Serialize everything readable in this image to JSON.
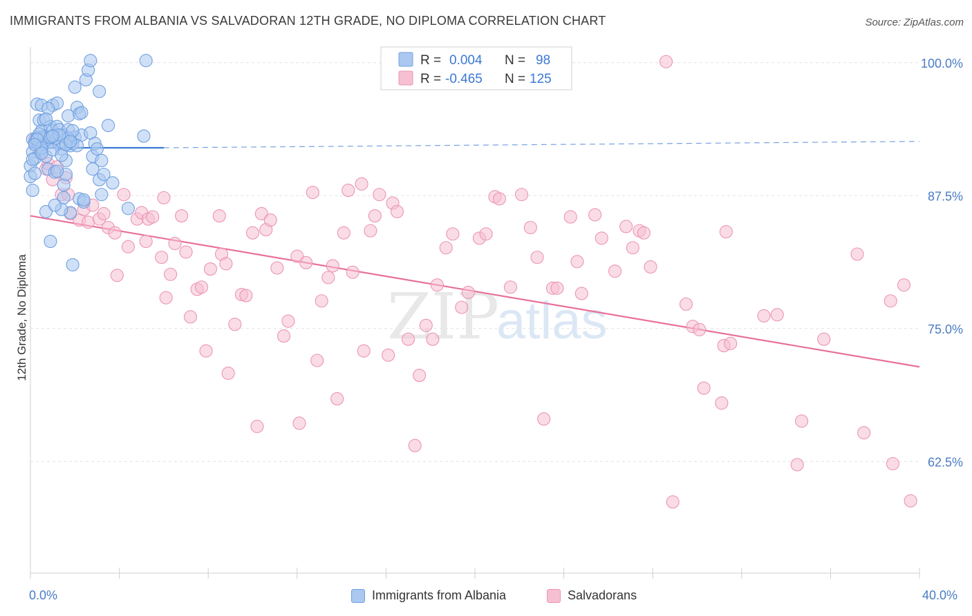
{
  "title": "IMMIGRANTS FROM ALBANIA VS SALVADORAN 12TH GRADE, NO DIPLOMA CORRELATION CHART",
  "source": "Source: ZipAtlas.com",
  "watermark": {
    "zip": "ZIP",
    "atlas": "atlas"
  },
  "colors": {
    "albania_fill": "#aac8f0",
    "albania_stroke": "#6f9fe0",
    "albania_line": "#3b78d4",
    "salv_fill": "#f6c0d2",
    "salv_stroke": "#ec94b4",
    "salv_line": "#e8709a",
    "tick_text": "#4a7bc4",
    "grid": "#e2e2e2"
  },
  "legend_top": {
    "r1_label": "R =",
    "r1_value": "0.004",
    "n1_label": "N =",
    "n1_value": "98",
    "r2_label": "R =",
    "r2_value": "-0.465",
    "n2_label": "N =",
    "n2_value": "125"
  },
  "chart_data": {
    "type": "scatter",
    "title": "IMMIGRANTS FROM ALBANIA VS SALVADORAN 12TH GRADE, NO DIPLOMA CORRELATION CHART",
    "xlabel": "",
    "ylabel": "12th Grade, No Diploma",
    "xlim": [
      0,
      40
    ],
    "ylim": [
      52,
      102
    ],
    "x_tick_labels": [
      "0.0%",
      "40.0%"
    ],
    "y_ticks": [
      62.5,
      75.0,
      87.5,
      100.0
    ],
    "y_tick_labels": [
      "62.5%",
      "75.0%",
      "87.5%",
      "100.0%"
    ],
    "grid": true,
    "legend_position": "top-center",
    "series": [
      {
        "name": "Immigrants from Albania",
        "R": 0.004,
        "N": 98,
        "trend": {
          "x": [
            0,
            6
          ],
          "y": [
            92.0,
            92.0
          ],
          "dashed_x": [
            6,
            40
          ],
          "dashed_y": [
            92.0,
            92.6
          ]
        },
        "points": [
          [
            0.0,
            90.3
          ],
          [
            0.0,
            89.3
          ],
          [
            0.1,
            92.8
          ],
          [
            0.1,
            91.6
          ],
          [
            0.1,
            88.0
          ],
          [
            0.2,
            92.5
          ],
          [
            0.2,
            91.0
          ],
          [
            0.3,
            96.1
          ],
          [
            0.3,
            93.0
          ],
          [
            0.3,
            92.7
          ],
          [
            0.4,
            94.6
          ],
          [
            0.4,
            93.0
          ],
          [
            0.4,
            92.2
          ],
          [
            0.5,
            96.0
          ],
          [
            0.5,
            93.6
          ],
          [
            0.5,
            91.8
          ],
          [
            0.6,
            94.6
          ],
          [
            0.6,
            93.1
          ],
          [
            0.6,
            92.4
          ],
          [
            0.7,
            86.0
          ],
          [
            0.7,
            91.2
          ],
          [
            0.8,
            92.5
          ],
          [
            0.8,
            90.0
          ],
          [
            0.9,
            83.2
          ],
          [
            0.9,
            94.0
          ],
          [
            0.9,
            92.6
          ],
          [
            1.0,
            96.0
          ],
          [
            1.0,
            93.6
          ],
          [
            1.0,
            92.5
          ],
          [
            1.1,
            89.7
          ],
          [
            1.1,
            93.2
          ],
          [
            1.2,
            96.2
          ],
          [
            1.2,
            94.0
          ],
          [
            1.2,
            92.9
          ],
          [
            1.3,
            93.7
          ],
          [
            1.3,
            92.4
          ],
          [
            1.4,
            91.9
          ],
          [
            1.5,
            88.5
          ],
          [
            1.5,
            87.3
          ],
          [
            1.5,
            93.2
          ],
          [
            1.6,
            90.8
          ],
          [
            1.6,
            89.5
          ],
          [
            1.7,
            95.0
          ],
          [
            1.7,
            93.7
          ],
          [
            1.8,
            92.2
          ],
          [
            1.8,
            85.9
          ],
          [
            1.9,
            81.0
          ],
          [
            1.9,
            92.4
          ],
          [
            2.0,
            97.7
          ],
          [
            2.0,
            93.0
          ],
          [
            2.1,
            95.8
          ],
          [
            2.2,
            95.2
          ],
          [
            2.2,
            87.2
          ],
          [
            2.3,
            93.2
          ],
          [
            2.4,
            86.9
          ],
          [
            2.5,
            98.4
          ],
          [
            2.6,
            99.3
          ],
          [
            2.7,
            100.2
          ],
          [
            2.7,
            93.4
          ],
          [
            2.8,
            91.2
          ],
          [
            2.8,
            90.0
          ],
          [
            3.1,
            97.3
          ],
          [
            3.1,
            89.0
          ],
          [
            3.2,
            87.6
          ],
          [
            3.2,
            90.8
          ],
          [
            3.3,
            89.5
          ],
          [
            3.5,
            94.1
          ],
          [
            3.7,
            88.7
          ],
          [
            4.4,
            86.3
          ],
          [
            5.1,
            93.1
          ],
          [
            5.2,
            100.2
          ],
          [
            1.4,
            86.2
          ],
          [
            0.6,
            92.9
          ],
          [
            0.8,
            95.7
          ],
          [
            1.0,
            91.8
          ],
          [
            1.7,
            92.9
          ],
          [
            2.3,
            95.3
          ],
          [
            0.2,
            89.6
          ],
          [
            0.4,
            93.3
          ],
          [
            0.9,
            93.0
          ],
          [
            1.1,
            86.6
          ],
          [
            1.3,
            93.2
          ],
          [
            1.4,
            91.3
          ],
          [
            1.9,
            93.6
          ],
          [
            2.1,
            92.2
          ],
          [
            0.3,
            92.8
          ],
          [
            0.5,
            92.0
          ],
          [
            0.7,
            94.7
          ],
          [
            1.6,
            92.3
          ],
          [
            2.4,
            87.1
          ],
          [
            0.1,
            90.9
          ],
          [
            0.2,
            92.3
          ],
          [
            0.5,
            91.5
          ],
          [
            1.0,
            93.1
          ],
          [
            1.2,
            89.8
          ],
          [
            1.8,
            92.6
          ],
          [
            2.9,
            92.4
          ],
          [
            3.0,
            91.9
          ]
        ]
      },
      {
        "name": "Salvadorans",
        "R": -0.465,
        "N": 125,
        "trend": {
          "x": [
            0,
            40
          ],
          "y": [
            85.6,
            71.4
          ]
        },
        "points": [
          [
            0.2,
            92.8
          ],
          [
            0.4,
            91.5
          ],
          [
            0.6,
            92.4
          ],
          [
            0.7,
            90.0
          ],
          [
            0.8,
            90.5
          ],
          [
            1.0,
            89.0
          ],
          [
            1.2,
            90.2
          ],
          [
            1.4,
            87.6
          ],
          [
            1.6,
            89.2
          ],
          [
            1.7,
            87.6
          ],
          [
            1.8,
            85.8
          ],
          [
            2.2,
            85.2
          ],
          [
            2.4,
            86.2
          ],
          [
            2.6,
            85.0
          ],
          [
            2.8,
            86.6
          ],
          [
            3.1,
            85.3
          ],
          [
            3.3,
            85.8
          ],
          [
            3.5,
            84.5
          ],
          [
            3.8,
            84.0
          ],
          [
            3.9,
            80.0
          ],
          [
            4.2,
            87.6
          ],
          [
            4.4,
            82.7
          ],
          [
            4.8,
            85.3
          ],
          [
            5.0,
            85.9
          ],
          [
            5.2,
            83.2
          ],
          [
            5.3,
            85.3
          ],
          [
            5.5,
            85.5
          ],
          [
            5.9,
            81.7
          ],
          [
            6.0,
            87.3
          ],
          [
            6.1,
            77.9
          ],
          [
            6.3,
            80.1
          ],
          [
            6.5,
            83.0
          ],
          [
            6.8,
            85.6
          ],
          [
            7.0,
            82.2
          ],
          [
            7.2,
            76.1
          ],
          [
            7.5,
            78.7
          ],
          [
            7.7,
            78.9
          ],
          [
            7.9,
            72.9
          ],
          [
            8.1,
            80.6
          ],
          [
            8.5,
            85.6
          ],
          [
            8.6,
            82.0
          ],
          [
            8.8,
            81.1
          ],
          [
            8.9,
            70.8
          ],
          [
            9.2,
            75.4
          ],
          [
            9.5,
            78.2
          ],
          [
            9.7,
            78.1
          ],
          [
            10.0,
            84.0
          ],
          [
            10.2,
            65.8
          ],
          [
            10.4,
            85.8
          ],
          [
            10.6,
            84.3
          ],
          [
            10.8,
            85.2
          ],
          [
            11.1,
            80.7
          ],
          [
            11.4,
            74.3
          ],
          [
            11.6,
            75.7
          ],
          [
            12.0,
            81.8
          ],
          [
            12.1,
            66.1
          ],
          [
            12.4,
            81.2
          ],
          [
            12.7,
            87.8
          ],
          [
            12.9,
            72.0
          ],
          [
            13.1,
            77.6
          ],
          [
            13.4,
            79.8
          ],
          [
            13.6,
            80.9
          ],
          [
            13.8,
            68.4
          ],
          [
            14.1,
            84.0
          ],
          [
            14.3,
            88.0
          ],
          [
            14.5,
            80.3
          ],
          [
            14.9,
            88.6
          ],
          [
            15.0,
            72.9
          ],
          [
            15.3,
            84.2
          ],
          [
            15.5,
            85.6
          ],
          [
            15.7,
            87.6
          ],
          [
            16.1,
            72.5
          ],
          [
            16.3,
            86.8
          ],
          [
            16.5,
            86.0
          ],
          [
            17.0,
            74.0
          ],
          [
            17.3,
            64.0
          ],
          [
            17.5,
            70.6
          ],
          [
            17.8,
            75.3
          ],
          [
            18.1,
            74.0
          ],
          [
            18.3,
            79.1
          ],
          [
            18.7,
            82.6
          ],
          [
            19.0,
            83.9
          ],
          [
            19.4,
            77.0
          ],
          [
            19.7,
            78.4
          ],
          [
            20.2,
            83.5
          ],
          [
            20.5,
            83.9
          ],
          [
            20.9,
            87.4
          ],
          [
            21.1,
            87.2
          ],
          [
            21.6,
            78.9
          ],
          [
            22.1,
            87.6
          ],
          [
            22.5,
            84.5
          ],
          [
            22.8,
            81.7
          ],
          [
            23.1,
            66.5
          ],
          [
            23.5,
            78.8
          ],
          [
            23.7,
            78.8
          ],
          [
            24.3,
            85.5
          ],
          [
            24.6,
            81.3
          ],
          [
            24.8,
            78.3
          ],
          [
            25.4,
            85.7
          ],
          [
            25.7,
            83.5
          ],
          [
            26.3,
            80.4
          ],
          [
            26.8,
            84.6
          ],
          [
            27.1,
            82.6
          ],
          [
            27.4,
            84.2
          ],
          [
            27.6,
            84.0
          ],
          [
            27.9,
            80.8
          ],
          [
            28.6,
            100.1
          ],
          [
            28.9,
            58.7
          ],
          [
            29.5,
            77.3
          ],
          [
            29.8,
            75.2
          ],
          [
            30.1,
            74.9
          ],
          [
            30.3,
            69.4
          ],
          [
            31.1,
            68.0
          ],
          [
            31.2,
            73.4
          ],
          [
            31.3,
            84.1
          ],
          [
            31.5,
            73.6
          ],
          [
            33.0,
            76.2
          ],
          [
            33.6,
            76.3
          ],
          [
            34.5,
            62.2
          ],
          [
            34.7,
            66.3
          ],
          [
            35.7,
            74.0
          ],
          [
            37.2,
            82.0
          ],
          [
            37.5,
            65.2
          ],
          [
            38.7,
            77.6
          ],
          [
            38.8,
            62.3
          ],
          [
            39.3,
            79.1
          ],
          [
            39.6,
            58.8
          ]
        ]
      }
    ]
  },
  "legend_bottom": {
    "item1": "Immigrants from Albania",
    "item2": "Salvadorans"
  }
}
